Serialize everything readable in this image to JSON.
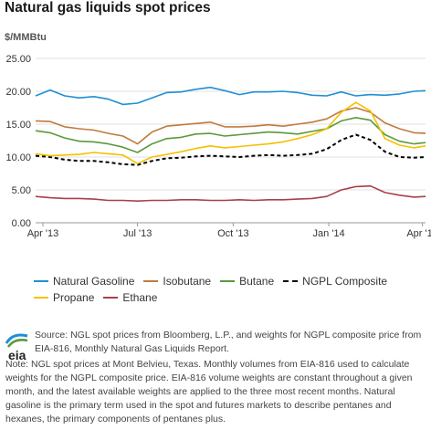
{
  "chart_data": {
    "type": "line",
    "title": "Natural gas liquids spot prices",
    "ylabel": "$/MMBtu",
    "ylim": [
      0,
      25
    ],
    "yticks": [
      "0.00",
      "5.00",
      "10.00",
      "15.00",
      "20.00",
      "25.00"
    ],
    "xticks": [
      {
        "label": "Apr '13",
        "date": "2013-04-01"
      },
      {
        "label": "Jul '13",
        "date": "2013-07-01"
      },
      {
        "label": "Oct '13",
        "date": "2013-10-01"
      },
      {
        "label": "Jan '14",
        "date": "2014-01-01"
      },
      {
        "label": "Apr '14",
        "date": "2014-04-01"
      }
    ],
    "xrange": [
      "2013-03-25",
      "2014-04-04"
    ],
    "grid": true,
    "legend_position": "bottom",
    "x": [
      "2013-03-25",
      "2013-04-08",
      "2013-04-22",
      "2013-05-06",
      "2013-05-20",
      "2013-06-03",
      "2013-06-17",
      "2013-07-01",
      "2013-07-15",
      "2013-07-29",
      "2013-08-12",
      "2013-08-26",
      "2013-09-09",
      "2013-09-23",
      "2013-10-07",
      "2013-10-21",
      "2013-11-04",
      "2013-11-18",
      "2013-12-02",
      "2013-12-16",
      "2013-12-30",
      "2014-01-13",
      "2014-01-27",
      "2014-02-10",
      "2014-02-24",
      "2014-03-10",
      "2014-03-24",
      "2014-04-04"
    ],
    "series": [
      {
        "name": "Natural Gasoline",
        "color": "#1f8fd6",
        "dashed": false,
        "values": [
          19.3,
          20.2,
          19.3,
          19.0,
          19.2,
          18.8,
          18.0,
          18.2,
          19.0,
          19.8,
          19.9,
          20.3,
          20.6,
          20.1,
          19.5,
          19.9,
          19.9,
          20.0,
          19.8,
          19.4,
          19.3,
          19.9,
          19.3,
          19.5,
          19.4,
          19.6,
          20.0,
          20.1
        ]
      },
      {
        "name": "Isobutane",
        "color": "#c07a3c",
        "dashed": false,
        "values": [
          15.5,
          15.4,
          14.6,
          14.3,
          14.1,
          13.6,
          13.2,
          12.0,
          13.8,
          14.7,
          14.9,
          15.1,
          15.3,
          14.6,
          14.6,
          14.7,
          14.9,
          14.7,
          15.0,
          15.3,
          15.8,
          17.0,
          17.5,
          16.8,
          15.2,
          14.3,
          13.7,
          13.6
        ]
      },
      {
        "name": "Butane",
        "color": "#5a9a3a",
        "dashed": false,
        "values": [
          14.0,
          13.7,
          12.9,
          12.4,
          12.3,
          12.0,
          11.5,
          10.7,
          12.0,
          12.8,
          13.0,
          13.5,
          13.6,
          13.2,
          13.4,
          13.6,
          13.8,
          13.7,
          13.5,
          13.9,
          14.3,
          15.5,
          16.0,
          15.6,
          13.4,
          12.4,
          12.0,
          12.2
        ]
      },
      {
        "name": "NGPL Composite",
        "color": "#000000",
        "dashed": true,
        "values": [
          10.2,
          10.0,
          9.6,
          9.4,
          9.4,
          9.2,
          8.9,
          8.8,
          9.4,
          9.8,
          9.9,
          10.1,
          10.2,
          10.1,
          10.0,
          10.2,
          10.3,
          10.2,
          10.3,
          10.5,
          11.2,
          12.6,
          13.4,
          12.6,
          10.8,
          10.0,
          9.9,
          10.0
        ]
      },
      {
        "name": "Propane",
        "color": "#f5c000",
        "dashed": false,
        "values": [
          10.5,
          10.2,
          10.3,
          10.4,
          10.7,
          10.5,
          10.3,
          9.0,
          10.0,
          10.4,
          10.8,
          11.3,
          11.7,
          11.4,
          11.6,
          11.8,
          12.0,
          12.3,
          12.8,
          13.4,
          14.3,
          16.8,
          18.3,
          17.0,
          12.8,
          11.8,
          11.4,
          11.7
        ]
      },
      {
        "name": "Ethane",
        "color": "#a8404a",
        "dashed": false,
        "values": [
          4.0,
          3.8,
          3.7,
          3.7,
          3.6,
          3.4,
          3.4,
          3.3,
          3.4,
          3.4,
          3.5,
          3.5,
          3.4,
          3.4,
          3.5,
          3.4,
          3.5,
          3.5,
          3.6,
          3.7,
          4.0,
          5.0,
          5.5,
          5.6,
          4.6,
          4.2,
          3.9,
          4.0
        ]
      }
    ]
  },
  "legend": {
    "row1": [
      "Natural Gasoline",
      "Isobutane",
      "Butane",
      "NGPL Composite"
    ],
    "row2": [
      "Propane",
      "Ethane"
    ]
  },
  "logo": {
    "text": "eia",
    "icon": "eia-logo-icon"
  },
  "source": "Source: NGL spot prices from Bloomberg, L.P., and weights for NGPL composite price from EIA-816, Monthly Natural Gas Liquids Report.",
  "note": "Note: NGL spot prices at Mont Belvieu, Texas. Monthly volumes from EIA-816 used to calculate weights for the NGPL composite price. EIA-816 volume weights are constant throughout a given month, and the latest available weights are applied to the three most recent months. Natural gasoline is the primary term used in the spot and futures markets to describe pentanes and hexanes, the primary components of pentanes plus."
}
